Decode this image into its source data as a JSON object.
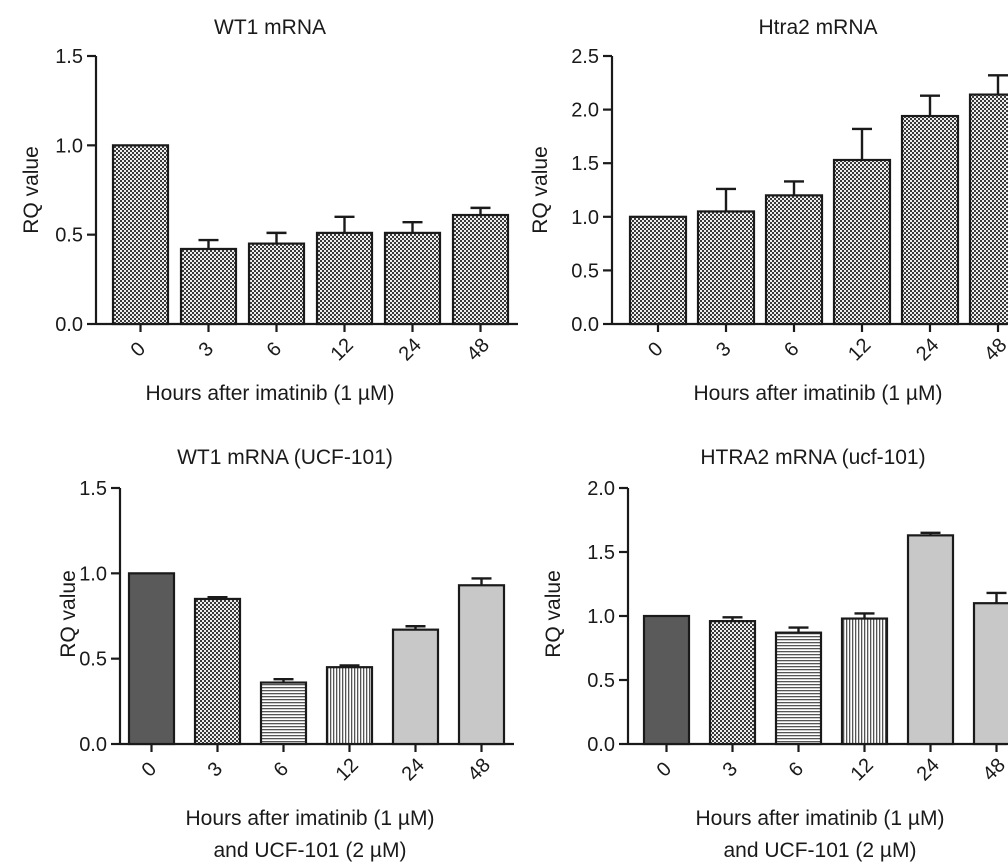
{
  "colors": {
    "checker_light": "#f2f2f2",
    "checker_dark": "#3a3a3a",
    "solid_dark": "#5a5a5a",
    "light_fill": "#c8c8c8",
    "stroke": "#1a1a1a"
  },
  "chart_data": [
    {
      "type": "bar",
      "title": "WT1 mRNA",
      "ylabel": "RQ value",
      "xlabel": [
        "Hours after imatinib (1 µM)"
      ],
      "categories": [
        "0",
        "3",
        "6",
        "12",
        "24",
        "48"
      ],
      "values": [
        1.0,
        0.42,
        0.45,
        0.51,
        0.51,
        0.61
      ],
      "errors": [
        0.0,
        0.05,
        0.06,
        0.09,
        0.06,
        0.04
      ],
      "ylim": [
        0,
        1.5
      ],
      "yticks": [
        "0.0",
        "0.5",
        "1.0",
        "1.5"
      ],
      "fills": [
        "checker",
        "checker",
        "checker",
        "checker",
        "checker",
        "checker"
      ]
    },
    {
      "type": "bar",
      "title": "Htra2 mRNA",
      "ylabel": "RQ value",
      "xlabel": [
        "Hours after imatinib (1 µM)"
      ],
      "categories": [
        "0",
        "3",
        "6",
        "12",
        "24",
        "48"
      ],
      "values": [
        1.0,
        1.05,
        1.2,
        1.53,
        1.94,
        2.14
      ],
      "errors": [
        0.0,
        0.21,
        0.13,
        0.29,
        0.19,
        0.18
      ],
      "ylim": [
        0,
        2.5
      ],
      "yticks": [
        "0.0",
        "0.5",
        "1.0",
        "1.5",
        "2.0",
        "2.5"
      ],
      "fills": [
        "checker",
        "checker",
        "checker",
        "checker",
        "checker",
        "checker"
      ]
    },
    {
      "type": "bar",
      "title": "WT1 mRNA (UCF-101)",
      "ylabel": "RQ value",
      "xlabel": [
        "Hours after imatinib (1 µM)",
        "and UCF-101 (2 µM)"
      ],
      "categories": [
        "0",
        "3",
        "6",
        "12",
        "24",
        "48"
      ],
      "values": [
        1.0,
        0.85,
        0.36,
        0.45,
        0.67,
        0.93
      ],
      "errors": [
        0.0,
        0.01,
        0.02,
        0.01,
        0.02,
        0.04
      ],
      "ylim": [
        0,
        1.5
      ],
      "yticks": [
        "0.0",
        "0.5",
        "1.0",
        "1.5"
      ],
      "fills": [
        "solid",
        "checker",
        "hlines",
        "vlines",
        "light",
        "light"
      ]
    },
    {
      "type": "bar",
      "title": "HTRA2 mRNA (ucf-101)",
      "ylabel": "RQ value",
      "xlabel": [
        "Hours after imatinib (1 µM)",
        "and UCF-101 (2 µM)"
      ],
      "categories": [
        "0",
        "3",
        "6",
        "12",
        "24",
        "48"
      ],
      "values": [
        1.0,
        0.96,
        0.87,
        0.98,
        1.63,
        1.1
      ],
      "errors": [
        0.0,
        0.03,
        0.04,
        0.04,
        0.02,
        0.08
      ],
      "ylim": [
        0,
        2.0
      ],
      "yticks": [
        "0.0",
        "0.5",
        "1.0",
        "1.5",
        "2.0"
      ],
      "fills": [
        "solid",
        "checker",
        "hlines",
        "vlines",
        "light",
        "light"
      ]
    }
  ]
}
